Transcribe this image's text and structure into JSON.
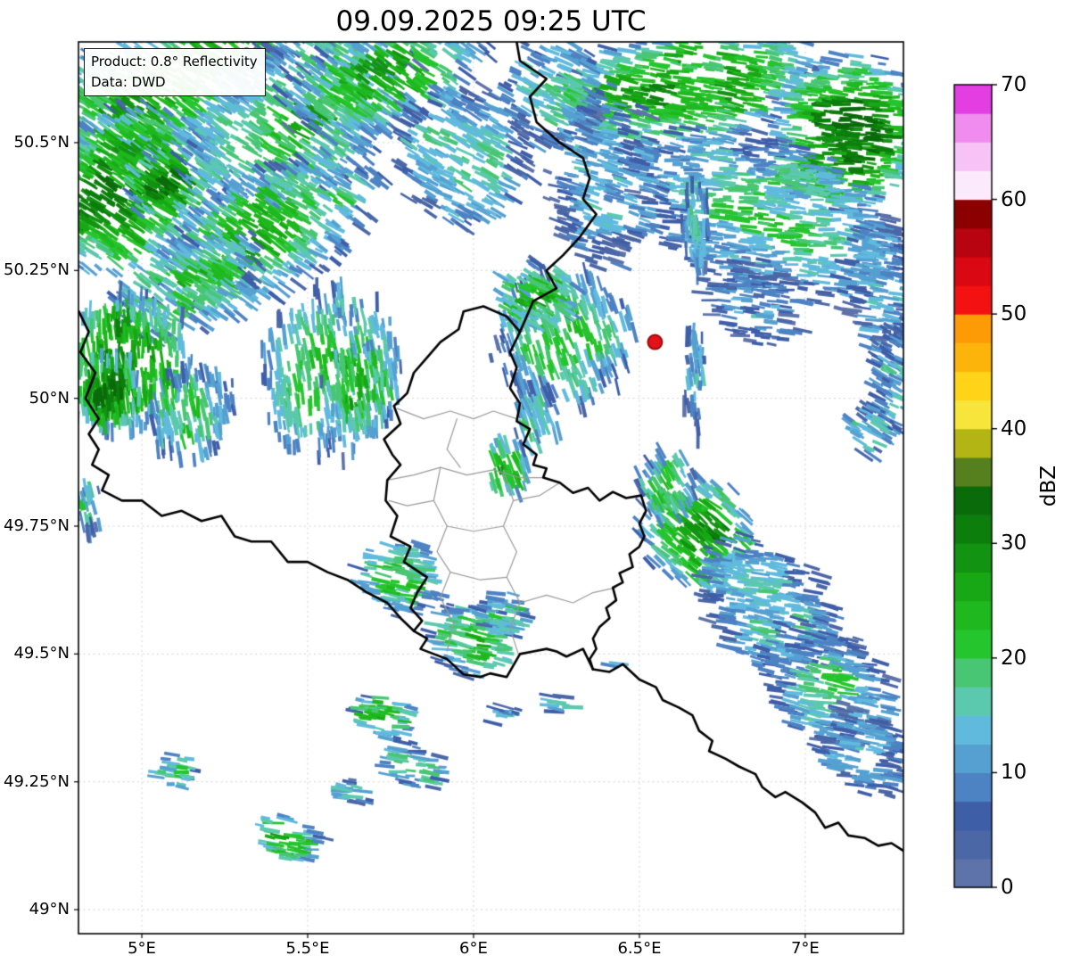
{
  "title": "09.09.2025 09:25 UTC",
  "annotation": {
    "line1": "Product: 0.8° Reflectivity",
    "line2": "Data: DWD"
  },
  "extent": {
    "lon_min": 4.809,
    "lon_max": 7.296,
    "lat_min": 48.953,
    "lat_max": 50.697
  },
  "axes": {
    "x_ticks": [
      {
        "label": "5°E",
        "lon": 5.0
      },
      {
        "label": "5.5°E",
        "lon": 5.5
      },
      {
        "label": "6°E",
        "lon": 6.0
      },
      {
        "label": "6.5°E",
        "lon": 6.5
      },
      {
        "label": "7°E",
        "lon": 7.0
      }
    ],
    "y_ticks": [
      {
        "label": "50.5°N",
        "lat": 50.5
      },
      {
        "label": "50.25°N",
        "lat": 50.25
      },
      {
        "label": "50°N",
        "lat": 50.0
      },
      {
        "label": "49.75°N",
        "lat": 49.75
      },
      {
        "label": "49.5°N",
        "lat": 49.5
      },
      {
        "label": "49.25°N",
        "lat": 49.25
      },
      {
        "label": "49°N",
        "lat": 49.0
      }
    ]
  },
  "grid": {
    "color": "#cfcfcf"
  },
  "colorbar": {
    "label": "dBZ",
    "min": 0,
    "max": 70,
    "step": 2.5,
    "tick_values": [
      0,
      10,
      20,
      30,
      40,
      50,
      60,
      70
    ],
    "colors": [
      "#5e73a9",
      "#4b67a6",
      "#3e5ea8",
      "#4d82c3",
      "#55a0d1",
      "#60bade",
      "#5bc9ad",
      "#48c673",
      "#25c52e",
      "#1fb91f",
      "#18a815",
      "#129312",
      "#0c7e0c",
      "#0a6b0a",
      "#567f1d",
      "#b2b514",
      "#f7e53b",
      "#fed318",
      "#fdb40a",
      "#fd9b06",
      "#f31111",
      "#d90813",
      "#b80310",
      "#8b0000",
      "#fbeafb",
      "#f7c3f7",
      "#f08cf0",
      "#e23ee2"
    ]
  },
  "radar_site": {
    "lon": 6.547,
    "lat": 50.11,
    "color": "#e3121a",
    "edge_color": "#9b0b0b"
  },
  "borders": {
    "country_color": "#000000",
    "admin_color": "#9a9a9a",
    "country": [
      [
        [
          6.13,
          50.697
        ],
        [
          6.14,
          50.66
        ],
        [
          6.22,
          50.625
        ],
        [
          6.17,
          50.59
        ],
        [
          6.19,
          50.54
        ],
        [
          6.26,
          50.5
        ],
        [
          6.33,
          50.47
        ],
        [
          6.35,
          50.43
        ],
        [
          6.33,
          50.39
        ],
        [
          6.37,
          50.36
        ],
        [
          6.32,
          50.315
        ],
        [
          6.27,
          50.28
        ],
        [
          6.22,
          50.25
        ],
        [
          6.25,
          50.215
        ],
        [
          6.18,
          50.19
        ],
        [
          6.16,
          50.16
        ],
        [
          6.14,
          50.13
        ]
      ],
      [
        [
          6.14,
          50.13
        ],
        [
          6.1,
          50.16
        ],
        [
          6.03,
          50.18
        ],
        [
          5.97,
          50.17
        ],
        [
          5.955,
          50.135
        ],
        [
          5.9,
          50.11
        ],
        [
          5.86,
          50.08
        ],
        [
          5.82,
          50.05
        ],
        [
          5.8,
          50.01
        ],
        [
          5.76,
          49.985
        ],
        [
          5.78,
          49.95
        ],
        [
          5.73,
          49.92
        ],
        [
          5.755,
          49.89
        ],
        [
          5.78,
          49.87
        ],
        [
          5.74,
          49.84
        ],
        [
          5.735,
          49.8
        ],
        [
          5.77,
          49.77
        ],
        [
          5.75,
          49.73
        ],
        [
          5.81,
          49.71
        ],
        [
          5.79,
          49.68
        ],
        [
          5.86,
          49.65
        ],
        [
          5.83,
          49.62
        ],
        [
          5.81,
          49.59
        ],
        [
          5.845,
          49.565
        ],
        [
          5.82,
          49.545
        ]
      ],
      [
        [
          6.14,
          50.13
        ],
        [
          6.11,
          50.09
        ],
        [
          6.13,
          50.06
        ],
        [
          6.11,
          50.02
        ],
        [
          6.14,
          49.99
        ],
        [
          6.13,
          49.955
        ],
        [
          6.17,
          49.94
        ],
        [
          6.15,
          49.91
        ],
        [
          6.19,
          49.89
        ],
        [
          6.18,
          49.87
        ],
        [
          6.22,
          49.863
        ],
        [
          6.21,
          49.845
        ],
        [
          6.26,
          49.835
        ],
        [
          6.3,
          49.815
        ],
        [
          6.345,
          49.825
        ],
        [
          6.38,
          49.8
        ],
        [
          6.42,
          49.817
        ],
        [
          6.46,
          49.805
        ],
        [
          6.505,
          49.81
        ],
        [
          6.52,
          49.78
        ],
        [
          6.5,
          49.755
        ],
        [
          6.515,
          49.73
        ],
        [
          6.5,
          49.71
        ],
        [
          6.47,
          49.695
        ],
        [
          6.48,
          49.67
        ],
        [
          6.44,
          49.658
        ],
        [
          6.45,
          49.64
        ],
        [
          6.42,
          49.63
        ],
        [
          6.43,
          49.605
        ],
        [
          6.4,
          49.59
        ],
        [
          6.41,
          49.57
        ],
        [
          6.38,
          49.553
        ],
        [
          6.36,
          49.53
        ],
        [
          6.37,
          49.51
        ],
        [
          6.35,
          49.49
        ],
        [
          6.36,
          49.47
        ]
      ],
      [
        [
          5.82,
          49.545
        ],
        [
          5.86,
          49.53
        ],
        [
          5.84,
          49.51
        ],
        [
          5.88,
          49.5
        ],
        [
          5.92,
          49.49
        ],
        [
          5.97,
          49.46
        ],
        [
          6.02,
          49.455
        ],
        [
          6.05,
          49.462
        ],
        [
          6.1,
          49.455
        ],
        [
          6.14,
          49.5
        ],
        [
          6.18,
          49.505
        ],
        [
          6.22,
          49.51
        ],
        [
          6.25,
          49.505
        ],
        [
          6.28,
          49.495
        ],
        [
          6.33,
          49.51
        ],
        [
          6.36,
          49.47
        ]
      ],
      [
        [
          4.81,
          50.17
        ],
        [
          4.84,
          50.13
        ],
        [
          4.815,
          50.09
        ],
        [
          4.86,
          50.05
        ],
        [
          4.83,
          50.0
        ],
        [
          4.87,
          49.96
        ],
        [
          4.84,
          49.93
        ],
        [
          4.87,
          49.9
        ],
        [
          4.85,
          49.87
        ],
        [
          4.9,
          49.85
        ],
        [
          4.88,
          49.82
        ],
        [
          4.94,
          49.8
        ],
        [
          5.0,
          49.8
        ],
        [
          5.06,
          49.77
        ],
        [
          5.12,
          49.78
        ],
        [
          5.18,
          49.76
        ],
        [
          5.24,
          49.77
        ],
        [
          5.28,
          49.73
        ],
        [
          5.33,
          49.72
        ],
        [
          5.39,
          49.72
        ],
        [
          5.44,
          49.68
        ],
        [
          5.5,
          49.68
        ],
        [
          5.56,
          49.66
        ],
        [
          5.62,
          49.645
        ],
        [
          5.68,
          49.62
        ],
        [
          5.74,
          49.6
        ],
        [
          5.78,
          49.57
        ],
        [
          5.82,
          49.545
        ]
      ],
      [
        [
          6.36,
          49.47
        ],
        [
          6.41,
          49.465
        ],
        [
          6.45,
          49.48
        ],
        [
          6.5,
          49.45
        ],
        [
          6.55,
          49.435
        ],
        [
          6.57,
          49.41
        ],
        [
          6.62,
          49.395
        ],
        [
          6.66,
          49.38
        ],
        [
          6.68,
          49.35
        ],
        [
          6.72,
          49.33
        ],
        [
          6.71,
          49.31
        ],
        [
          6.76,
          49.295
        ],
        [
          6.8,
          49.28
        ],
        [
          6.85,
          49.265
        ],
        [
          6.87,
          49.24
        ],
        [
          6.91,
          49.22
        ],
        [
          6.94,
          49.23
        ],
        [
          6.99,
          49.21
        ],
        [
          7.03,
          49.19
        ],
        [
          7.06,
          49.16
        ],
        [
          7.1,
          49.17
        ],
        [
          7.13,
          49.145
        ],
        [
          7.18,
          49.14
        ],
        [
          7.22,
          49.125
        ],
        [
          7.26,
          49.13
        ],
        [
          7.296,
          49.115
        ]
      ]
    ],
    "admin": [
      [
        [
          5.77,
          49.98
        ],
        [
          5.85,
          49.96
        ],
        [
          5.93,
          49.975
        ],
        [
          6.0,
          49.96
        ],
        [
          6.06,
          49.975
        ],
        [
          6.13,
          49.96
        ]
      ],
      [
        [
          5.74,
          49.84
        ],
        [
          5.82,
          49.85
        ],
        [
          5.9,
          49.865
        ],
        [
          5.98,
          49.85
        ],
        [
          6.06,
          49.86
        ],
        [
          6.14,
          49.845
        ],
        [
          6.21,
          49.845
        ]
      ],
      [
        [
          5.95,
          49.96
        ],
        [
          5.92,
          49.9
        ],
        [
          5.96,
          49.865
        ]
      ],
      [
        [
          5.9,
          49.865
        ],
        [
          5.88,
          49.8
        ],
        [
          5.92,
          49.75
        ],
        [
          5.89,
          49.7
        ],
        [
          5.93,
          49.66
        ],
        [
          5.9,
          49.61
        ],
        [
          5.94,
          49.56
        ],
        [
          5.92,
          49.505
        ]
      ],
      [
        [
          6.09,
          49.86
        ],
        [
          6.12,
          49.8
        ],
        [
          6.09,
          49.75
        ],
        [
          6.13,
          49.7
        ],
        [
          6.1,
          49.65
        ],
        [
          6.14,
          49.6
        ],
        [
          6.11,
          49.55
        ],
        [
          6.135,
          49.5
        ]
      ],
      [
        [
          5.92,
          49.75
        ],
        [
          6.0,
          49.74
        ],
        [
          6.09,
          49.75
        ]
      ],
      [
        [
          5.93,
          49.66
        ],
        [
          6.02,
          49.645
        ],
        [
          6.1,
          49.65
        ]
      ],
      [
        [
          6.14,
          49.6
        ],
        [
          6.22,
          49.615
        ],
        [
          6.3,
          49.6
        ],
        [
          6.36,
          49.62
        ],
        [
          6.43,
          49.63
        ]
      ],
      [
        [
          5.88,
          49.8
        ],
        [
          5.8,
          49.79
        ],
        [
          5.745,
          49.8
        ]
      ],
      [
        [
          6.12,
          49.8
        ],
        [
          6.2,
          49.81
        ],
        [
          6.26,
          49.835
        ]
      ]
    ]
  },
  "echo_fields": [
    "lon",
    "lat",
    "rx_px",
    "ry_px",
    "rotation_deg",
    "peak_dbz",
    "streak_angle_deg",
    "gap_fraction"
  ],
  "echoes": [
    [
      5.04,
      50.61,
      190,
      75,
      -25,
      26,
      33,
      0.25
    ],
    [
      4.95,
      50.41,
      130,
      95,
      -25,
      31,
      33,
      0.2
    ],
    [
      5.07,
      50.42,
      48,
      38,
      -25,
      34,
      33,
      0.12
    ],
    [
      5.46,
      50.55,
      160,
      95,
      -30,
      23,
      33,
      0.3
    ],
    [
      5.73,
      50.63,
      130,
      65,
      -20,
      24,
      33,
      0.3
    ],
    [
      5.38,
      50.32,
      150,
      75,
      -30,
      25,
      33,
      0.3
    ],
    [
      5.97,
      50.48,
      90,
      90,
      0,
      16,
      28,
      0.35
    ],
    [
      5.14,
      50.22,
      100,
      55,
      -30,
      21,
      33,
      0.3
    ],
    [
      6.64,
      50.61,
      160,
      75,
      -10,
      27,
      10,
      0.25
    ],
    [
      7.13,
      50.52,
      95,
      95,
      0,
      33,
      5,
      0.15
    ],
    [
      6.88,
      50.36,
      170,
      95,
      20,
      19,
      5,
      0.3
    ],
    [
      6.4,
      50.43,
      70,
      110,
      0,
      14,
      15,
      0.3
    ],
    [
      6.24,
      50.6,
      60,
      70,
      0,
      18,
      25,
      0.35
    ],
    [
      7.23,
      50.22,
      50,
      85,
      0,
      13,
      10,
      0.3
    ],
    [
      4.95,
      50.07,
      80,
      88,
      10,
      32,
      86,
      0.2
    ],
    [
      4.9,
      50.01,
      40,
      48,
      0,
      34,
      86,
      0.1
    ],
    [
      5.15,
      49.97,
      55,
      62,
      20,
      21,
      80,
      0.3
    ],
    [
      5.57,
      50.05,
      85,
      108,
      8,
      22,
      82,
      0.3
    ],
    [
      5.66,
      50.02,
      46,
      56,
      0,
      27,
      82,
      0.2
    ],
    [
      6.27,
      50.12,
      85,
      85,
      0,
      23,
      70,
      0.3
    ],
    [
      6.19,
      50.2,
      52,
      42,
      0,
      26,
      30,
      0.25
    ],
    [
      6.1,
      49.86,
      28,
      40,
      0,
      25,
      70,
      0.2
    ],
    [
      6.19,
      49.96,
      30,
      46,
      0,
      17,
      70,
      0.3
    ],
    [
      6.67,
      49.74,
      76,
      66,
      30,
      30,
      40,
      0.2
    ],
    [
      6.89,
      49.59,
      105,
      70,
      40,
      16,
      10,
      0.25
    ],
    [
      7.07,
      49.44,
      95,
      65,
      40,
      17,
      10,
      0.25
    ],
    [
      7.17,
      49.31,
      68,
      46,
      40,
      13,
      10,
      0.3
    ],
    [
      6.58,
      49.83,
      36,
      46,
      0,
      22,
      60,
      0.25
    ],
    [
      6.67,
      50.33,
      18,
      62,
      0,
      15,
      86,
      0.25
    ],
    [
      6.67,
      50.03,
      16,
      70,
      0,
      14,
      86,
      0.3
    ],
    [
      7.26,
      50.03,
      36,
      76,
      10,
      13,
      30,
      0.3
    ],
    [
      7.19,
      49.94,
      26,
      36,
      0,
      16,
      30,
      0.3
    ],
    [
      6.84,
      50.19,
      70,
      52,
      20,
      11,
      5,
      0.45
    ],
    [
      5.78,
      49.65,
      56,
      46,
      20,
      21,
      10,
      0.3
    ],
    [
      6.0,
      49.53,
      56,
      46,
      15,
      23,
      10,
      0.25
    ],
    [
      6.09,
      49.58,
      34,
      30,
      0,
      18,
      10,
      0.3
    ],
    [
      5.73,
      49.38,
      40,
      28,
      10,
      26,
      8,
      0.2
    ],
    [
      5.82,
      49.28,
      44,
      28,
      15,
      18,
      8,
      0.25
    ],
    [
      5.64,
      49.23,
      26,
      16,
      10,
      14,
      8,
      0.3
    ],
    [
      5.44,
      49.14,
      44,
      28,
      10,
      26,
      8,
      0.2
    ],
    [
      5.1,
      49.27,
      30,
      23,
      -20,
      17,
      8,
      0.3
    ],
    [
      6.09,
      49.38,
      23,
      14,
      10,
      13,
      8,
      0.3
    ],
    [
      6.27,
      49.4,
      27,
      15,
      10,
      15,
      8,
      0.3
    ],
    [
      4.83,
      49.79,
      26,
      36,
      0,
      16,
      80,
      0.3
    ],
    [
      6.43,
      49.47,
      13,
      10,
      0,
      10,
      8,
      0.3
    ]
  ]
}
